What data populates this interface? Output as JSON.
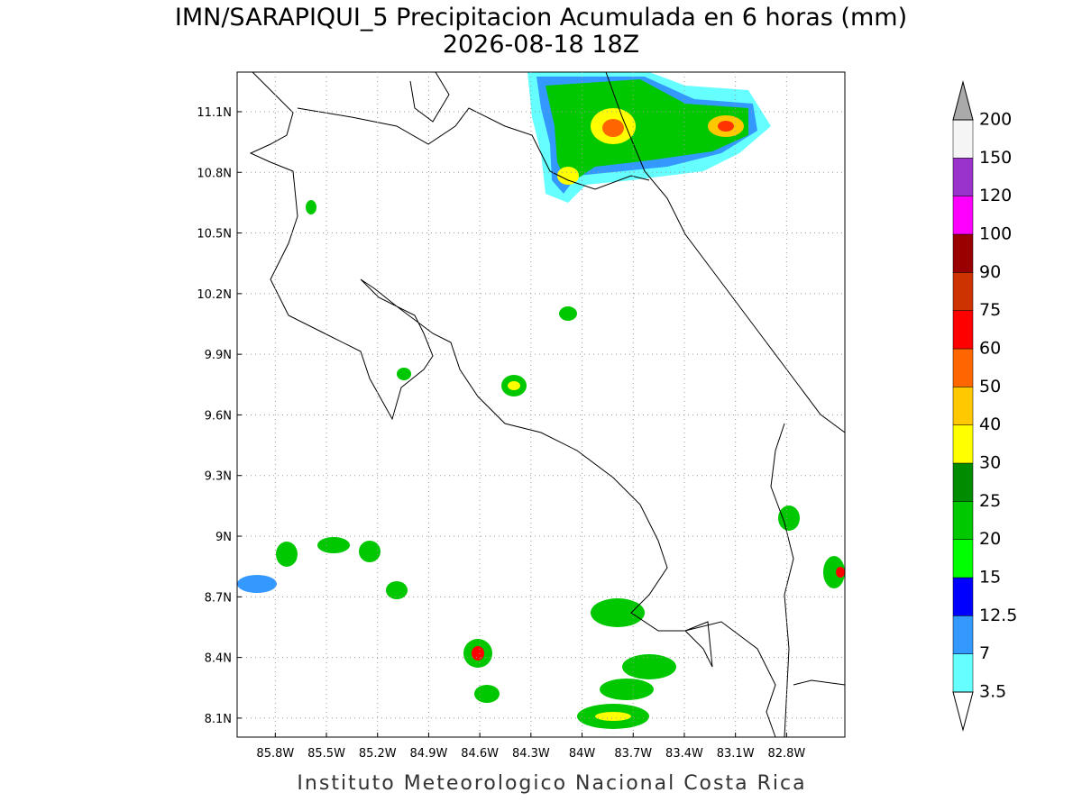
{
  "map": {
    "title": "IMN/SARAPIQUI_5 Precipitacion Acumulada en 6 horas (mm)",
    "subtitle": "2026-08-18 18Z",
    "footer": "Instituto Meteorologico Nacional Costa Rica",
    "lonlim": [
      -86.024,
      -82.458
    ],
    "latlim": [
      8.006,
      11.296
    ],
    "lonticks": [
      {
        "value": -85.8,
        "label": "85.8W"
      },
      {
        "value": -85.5,
        "label": "85.5W"
      },
      {
        "value": -85.2,
        "label": "85.2W"
      },
      {
        "value": -84.9,
        "label": "84.9W"
      },
      {
        "value": -84.6,
        "label": "84.6W"
      },
      {
        "value": -84.3,
        "label": "84.3W"
      },
      {
        "value": -84.0,
        "label": "84W"
      },
      {
        "value": -83.7,
        "label": "83.7W"
      },
      {
        "value": -83.4,
        "label": "83.4W"
      },
      {
        "value": -83.1,
        "label": "83.1W"
      },
      {
        "value": -82.8,
        "label": "82.8W"
      }
    ],
    "latticks": [
      {
        "value": 8.1,
        "label": "8.1N"
      },
      {
        "value": 8.4,
        "label": "8.4N"
      },
      {
        "value": 8.7,
        "label": "8.7N"
      },
      {
        "value": 9.0,
        "label": "9N"
      },
      {
        "value": 9.3,
        "label": "9.3N"
      },
      {
        "value": 9.6,
        "label": "9.6N"
      },
      {
        "value": 9.9,
        "label": "9.9N"
      },
      {
        "value": 10.2,
        "label": "10.2N"
      },
      {
        "value": 10.5,
        "label": "10.5N"
      },
      {
        "value": 10.8,
        "label": "10.8N"
      },
      {
        "value": 11.1,
        "label": "11.1N"
      }
    ],
    "grid": true,
    "colorbar": {
      "levels": [
        3.5,
        7,
        12.5,
        15,
        20,
        25,
        30,
        40,
        50,
        60,
        75,
        90,
        100,
        120,
        150,
        200
      ],
      "colors": [
        "#66ffff",
        "#3399ff",
        "#0000ff",
        "#00ff00",
        "#00c800",
        "#008c00",
        "#ffff00",
        "#ffc800",
        "#ff6600",
        "#ff0000",
        "#cc3300",
        "#990000",
        "#ff00ff",
        "#9933cc",
        "#f5f5f5"
      ],
      "under_color": "#ffffff",
      "over_color": "#aaaaaa"
    }
  }
}
